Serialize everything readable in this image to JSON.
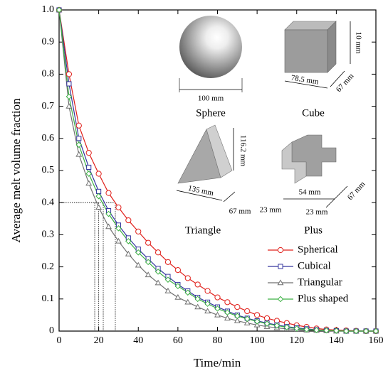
{
  "chart_data": {
    "type": "line",
    "x_label": "Time/min",
    "y_label": "Average melt volume fraction",
    "x": [
      0,
      5,
      10,
      15,
      20,
      25,
      30,
      35,
      40,
      45,
      50,
      55,
      60,
      65,
      70,
      75,
      80,
      85,
      90,
      95,
      100,
      105,
      110,
      115,
      120,
      125,
      130,
      135,
      140,
      145,
      150,
      155,
      160
    ],
    "series": [
      {
        "name": "Spherical",
        "color": "#e0201b",
        "marker": "circle",
        "values": [
          1,
          0.8,
          0.64,
          0.555,
          0.49,
          0.43,
          0.385,
          0.345,
          0.31,
          0.275,
          0.245,
          0.215,
          0.19,
          0.165,
          0.145,
          0.125,
          0.105,
          0.09,
          0.075,
          0.062,
          0.05,
          0.04,
          0.032,
          0.025,
          0.018,
          0.013,
          0.008,
          0.005,
          0.003,
          0.002,
          0.001,
          0,
          0
        ]
      },
      {
        "name": "Cubical",
        "color": "#34359e",
        "marker": "square",
        "values": [
          1,
          0.77,
          0.6,
          0.51,
          0.435,
          0.375,
          0.33,
          0.29,
          0.255,
          0.225,
          0.195,
          0.17,
          0.145,
          0.125,
          0.105,
          0.09,
          0.075,
          0.062,
          0.05,
          0.04,
          0.032,
          0.025,
          0.019,
          0.014,
          0.01,
          0.007,
          0.004,
          0.002,
          0.001,
          0,
          0,
          0,
          0
        ]
      },
      {
        "name": "Triangular",
        "color": "#707070",
        "marker": "triangle",
        "values": [
          1,
          0.7,
          0.55,
          0.46,
          0.385,
          0.325,
          0.28,
          0.24,
          0.205,
          0.175,
          0.15,
          0.125,
          0.105,
          0.09,
          0.075,
          0.062,
          0.05,
          0.04,
          0.032,
          0.025,
          0.019,
          0.014,
          0.01,
          0.007,
          0.005,
          0.003,
          0.002,
          0.001,
          0,
          0,
          0,
          0,
          0
        ]
      },
      {
        "name": "Plus shaped",
        "color": "#3cb043",
        "marker": "diamond",
        "values": [
          1,
          0.73,
          0.58,
          0.49,
          0.42,
          0.365,
          0.32,
          0.28,
          0.245,
          0.215,
          0.185,
          0.16,
          0.14,
          0.12,
          0.1,
          0.085,
          0.07,
          0.058,
          0.047,
          0.038,
          0.03,
          0.023,
          0.017,
          0.012,
          0.008,
          0.005,
          0.003,
          0.002,
          0.001,
          0,
          0,
          0,
          0
        ]
      }
    ],
    "xlim": [
      0,
      160
    ],
    "ylim": [
      0,
      1
    ],
    "xticks": [
      0,
      20,
      40,
      60,
      80,
      100,
      120,
      140,
      160
    ],
    "yticks": [
      0,
      0.1,
      0.2,
      0.3,
      0.4,
      0.5,
      0.6,
      0.7,
      0.8,
      0.9,
      {
        "value": 1,
        "label": "1.0"
      }
    ],
    "reference_lines": {
      "y": 0.4,
      "x": [
        18,
        20,
        22.3,
        28.4
      ]
    },
    "legend": "lower right",
    "insets": [
      {
        "name": "Sphere",
        "dims": [
          "100 mm"
        ]
      },
      {
        "name": "Cube",
        "dims": [
          "10 mm",
          "78.5 mm",
          "67 mm"
        ]
      },
      {
        "name": "Triangle",
        "dims": [
          "116.2 mm",
          "135 mm",
          "67 mm"
        ]
      },
      {
        "name": "Plus",
        "dims": [
          "54 mm",
          "67 mm",
          "23 mm",
          "23 mm"
        ]
      }
    ]
  }
}
